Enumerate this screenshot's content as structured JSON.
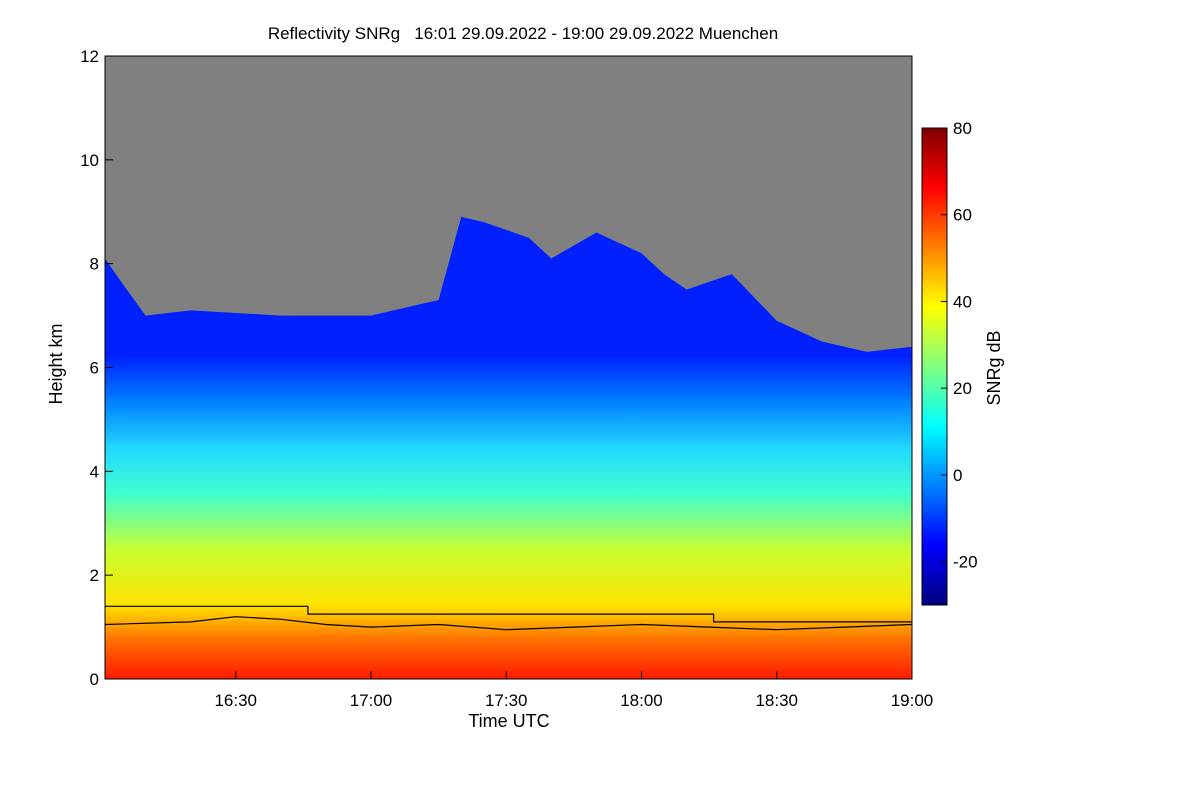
{
  "chart_data": {
    "type": "heatmap",
    "title": "Reflectivity SNRg   16:01 29.09.2022 - 19:00 29.09.2022 Muenchen",
    "xlabel": "Time UTC",
    "ylabel": "Height km",
    "colorbar_label": "SNRg dB",
    "x_range": [
      "16:01",
      "19:00"
    ],
    "y_range": [
      0,
      12
    ],
    "x_ticks": [
      "16:30",
      "17:00",
      "17:30",
      "18:00",
      "18:30",
      "19:00"
    ],
    "y_ticks": [
      "0",
      "2",
      "4",
      "6",
      "8",
      "10",
      "12"
    ],
    "colorbar_range": [
      -30,
      80
    ],
    "colorbar_ticks": [
      "-20",
      "0",
      "20",
      "40",
      "60",
      "80"
    ],
    "no_data_color": "#808080",
    "colormap": [
      "#00007f",
      "#0000ff",
      "#0080ff",
      "#00ffff",
      "#80ff80",
      "#ffff00",
      "#ff8000",
      "#ff0000",
      "#7f0000"
    ],
    "echo_top_km": [
      {
        "time": "16:01",
        "height": 8.1
      },
      {
        "time": "16:05",
        "height": 7.6
      },
      {
        "time": "16:10",
        "height": 7.0
      },
      {
        "time": "16:20",
        "height": 7.1
      },
      {
        "time": "16:40",
        "height": 7.0
      },
      {
        "time": "17:00",
        "height": 7.0
      },
      {
        "time": "17:15",
        "height": 7.3
      },
      {
        "time": "17:20",
        "height": 8.9
      },
      {
        "time": "17:25",
        "height": 8.8
      },
      {
        "time": "17:35",
        "height": 8.5
      },
      {
        "time": "17:40",
        "height": 8.1
      },
      {
        "time": "17:50",
        "height": 8.6
      },
      {
        "time": "18:00",
        "height": 8.2
      },
      {
        "time": "18:05",
        "height": 7.8
      },
      {
        "time": "18:10",
        "height": 7.5
      },
      {
        "time": "18:20",
        "height": 7.8
      },
      {
        "time": "18:30",
        "height": 6.9
      },
      {
        "time": "18:40",
        "height": 6.5
      },
      {
        "time": "18:50",
        "height": 6.3
      },
      {
        "time": "19:00",
        "height": 6.4
      }
    ],
    "upper_line_km": [
      {
        "time": "16:01",
        "height": 1.4
      },
      {
        "time": "16:46",
        "height": 1.4
      },
      {
        "time": "16:46",
        "height": 1.25
      },
      {
        "time": "18:16",
        "height": 1.25
      },
      {
        "time": "18:16",
        "height": 1.1
      },
      {
        "time": "19:00",
        "height": 1.1
      }
    ],
    "lower_line_km": [
      {
        "time": "16:01",
        "height": 1.05
      },
      {
        "time": "16:20",
        "height": 1.1
      },
      {
        "time": "16:30",
        "height": 1.2
      },
      {
        "time": "16:40",
        "height": 1.15
      },
      {
        "time": "16:50",
        "height": 1.05
      },
      {
        "time": "17:00",
        "height": 1.0
      },
      {
        "time": "17:15",
        "height": 1.05
      },
      {
        "time": "17:30",
        "height": 0.95
      },
      {
        "time": "17:45",
        "height": 1.0
      },
      {
        "time": "18:00",
        "height": 1.05
      },
      {
        "time": "18:15",
        "height": 1.0
      },
      {
        "time": "18:30",
        "height": 0.95
      },
      {
        "time": "18:45",
        "height": 1.0
      },
      {
        "time": "19:00",
        "height": 1.05
      }
    ]
  }
}
